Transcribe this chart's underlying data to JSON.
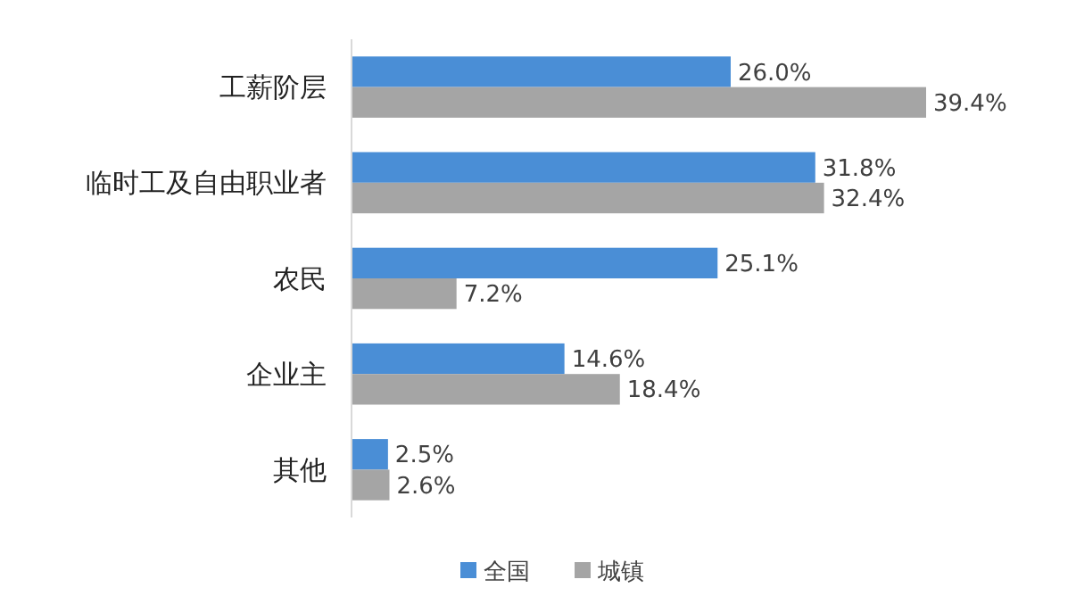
{
  "chart_data": {
    "type": "bar",
    "orientation": "horizontal",
    "categories": [
      "工薪阶层",
      "临时工及自由职业者",
      "农民",
      "企业主",
      "其他"
    ],
    "series": [
      {
        "name": "全国",
        "color": "#4a8ed6",
        "values": [
          26.0,
          31.8,
          25.1,
          14.6,
          2.5
        ],
        "value_labels": [
          "26.0%",
          "31.8%",
          "25.1%",
          "14.6%",
          "2.5%"
        ]
      },
      {
        "name": "城镇",
        "color": "#a5a5a5",
        "values": [
          39.4,
          32.4,
          7.2,
          18.4,
          2.6
        ],
        "value_labels": [
          "39.4%",
          "32.4%",
          "7.2%",
          "18.4%",
          "2.6%"
        ]
      }
    ],
    "legend": "bottom",
    "grid": false
  }
}
